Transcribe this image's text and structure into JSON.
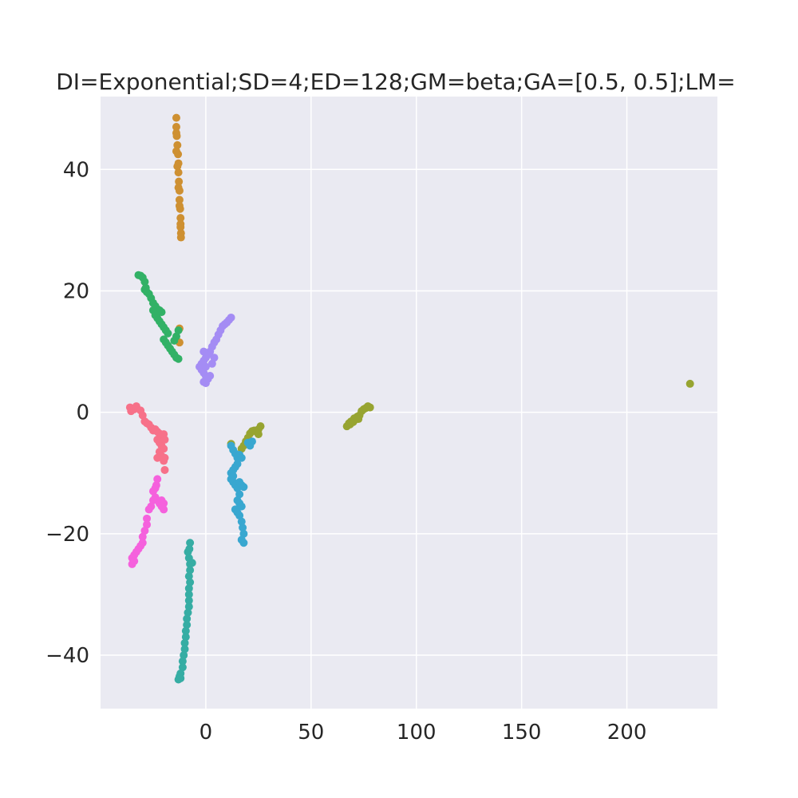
{
  "chart_data": {
    "type": "scatter",
    "title": "DI=Exponential;SD=4;ED=128;GM=beta;GA=[0.5, 0.5];LM=",
    "xlabel": "",
    "ylabel": "",
    "xlim": [
      -50,
      243
    ],
    "ylim": [
      -48.8,
      52
    ],
    "xticks": [
      0,
      50,
      100,
      150,
      200
    ],
    "xtick_labels": [
      "0",
      "50",
      "100",
      "150",
      "200"
    ],
    "yticks": [
      -40,
      -20,
      0,
      20,
      40
    ],
    "ytick_labels": [
      "−40",
      "−20",
      "0",
      "20",
      "40"
    ],
    "grid": true,
    "background": "#eaeaf2",
    "series": [
      {
        "color": "#f77189",
        "points": [
          [
            -36,
            0.8
          ],
          [
            -35.5,
            0.2
          ],
          [
            -34,
            0.5
          ],
          [
            -33,
            1.0
          ],
          [
            -31,
            0.3
          ],
          [
            -30,
            -0.5
          ],
          [
            -29,
            -1.5
          ],
          [
            -28,
            -1.8
          ],
          [
            -27,
            -2.0
          ],
          [
            -26,
            -2.5
          ],
          [
            -25,
            -3.0
          ],
          [
            -24,
            -2.8
          ],
          [
            -23,
            -3.2
          ],
          [
            -22,
            -3.5
          ],
          [
            -21,
            -3.8
          ],
          [
            -20,
            -3.6
          ],
          [
            -23,
            -4.5
          ],
          [
            -22,
            -5.0
          ],
          [
            -21,
            -5.5
          ],
          [
            -20,
            -6.0
          ],
          [
            -19.5,
            -4.5
          ],
          [
            -22,
            -6.5
          ],
          [
            -21,
            -7.2
          ],
          [
            -20,
            -8.0
          ],
          [
            -19.5,
            -9.5
          ],
          [
            -19.5,
            -7.5
          ],
          [
            -23,
            -7.5
          ]
        ]
      },
      {
        "color": "#ce9032",
        "points": [
          [
            -14,
            48.5
          ],
          [
            -14,
            47
          ],
          [
            -13.8,
            45.5
          ],
          [
            -13.5,
            44
          ],
          [
            -13.2,
            42.5
          ],
          [
            -13,
            41
          ],
          [
            -13,
            39.5
          ],
          [
            -12.8,
            38
          ],
          [
            -12.5,
            36.5
          ],
          [
            -12.5,
            35
          ],
          [
            -12.2,
            33.5
          ],
          [
            -12,
            32
          ],
          [
            -12,
            30.5
          ],
          [
            -11.8,
            29.5
          ],
          [
            -11.8,
            28.8
          ],
          [
            -12,
            31
          ],
          [
            -12.5,
            34
          ],
          [
            -13,
            37
          ],
          [
            -13.5,
            40.5
          ],
          [
            -14,
            43
          ],
          [
            -14,
            46
          ],
          [
            -12.5,
            13.8
          ],
          [
            -12.5,
            11.5
          ]
        ]
      },
      {
        "color": "#97a431",
        "points": [
          [
            230,
            4.7
          ],
          [
            67,
            -2.3
          ],
          [
            68,
            -1.8
          ],
          [
            69,
            -1.5
          ],
          [
            70,
            -1.6
          ],
          [
            71,
            -1.2
          ],
          [
            72,
            -0.7
          ],
          [
            73,
            -0.5
          ],
          [
            74,
            0.2
          ],
          [
            75,
            0.5
          ],
          [
            76,
            0.7
          ],
          [
            77,
            1.0
          ],
          [
            78,
            0.8
          ],
          [
            68.5,
            -2.0
          ],
          [
            70.5,
            -1.0
          ],
          [
            72.5,
            -1.1
          ],
          [
            26,
            -2.3
          ],
          [
            25,
            -2.8
          ],
          [
            24,
            -3.2
          ],
          [
            23,
            -3.0
          ],
          [
            22,
            -3.1
          ],
          [
            21,
            -3.5
          ],
          [
            20,
            -4.2
          ],
          [
            19,
            -4.8
          ],
          [
            18,
            -5.5
          ],
          [
            17,
            -6.0
          ],
          [
            12,
            -5.2
          ],
          [
            25,
            -3.6
          ]
        ]
      },
      {
        "color": "#32b166",
        "points": [
          [
            -32,
            22.6
          ],
          [
            -31,
            22.5
          ],
          [
            -30,
            22.2
          ],
          [
            -29,
            21.5
          ],
          [
            -28.5,
            20.5
          ],
          [
            -28,
            19.8
          ],
          [
            -27,
            19.5
          ],
          [
            -26,
            18.8
          ],
          [
            -25,
            18.0
          ],
          [
            -24,
            17.5
          ],
          [
            -23,
            17.0
          ],
          [
            -22,
            16.8
          ],
          [
            -21,
            16.5
          ],
          [
            -24,
            16.0
          ],
          [
            -23,
            15.5
          ],
          [
            -22,
            15.0
          ],
          [
            -21,
            14.5
          ],
          [
            -20,
            14.0
          ],
          [
            -19,
            13.5
          ],
          [
            -18,
            13.0
          ],
          [
            -20,
            12.0
          ],
          [
            -19,
            11.5
          ],
          [
            -18,
            11.0
          ],
          [
            -17,
            10.5
          ],
          [
            -16,
            10.0
          ],
          [
            -15,
            9.5
          ],
          [
            -14,
            9.0
          ],
          [
            -13,
            8.8
          ],
          [
            -13,
            13.5
          ],
          [
            -14,
            12.5
          ],
          [
            -15,
            11.8
          ],
          [
            -29,
            20.2
          ],
          [
            -25,
            16.8
          ]
        ]
      },
      {
        "color": "#36ada4",
        "points": [
          [
            -7.5,
            -21.5
          ],
          [
            -7.8,
            -22.5
          ],
          [
            -8.5,
            -23
          ],
          [
            -8,
            -24
          ],
          [
            -7.5,
            -25
          ],
          [
            -6.5,
            -24.8
          ],
          [
            -7.5,
            -26
          ],
          [
            -8,
            -27
          ],
          [
            -7.5,
            -28
          ],
          [
            -8,
            -29
          ],
          [
            -8,
            -30
          ],
          [
            -8,
            -31
          ],
          [
            -8,
            -32
          ],
          [
            -8.5,
            -33
          ],
          [
            -9,
            -34
          ],
          [
            -9,
            -35
          ],
          [
            -9.5,
            -36
          ],
          [
            -9.5,
            -37
          ],
          [
            -10,
            -38
          ],
          [
            -10,
            -39
          ],
          [
            -10.5,
            -40
          ],
          [
            -11,
            -41
          ],
          [
            -11,
            -42
          ],
          [
            -12,
            -43
          ],
          [
            -12.5,
            -43.5
          ],
          [
            -13,
            -44
          ],
          [
            -12,
            -43.8
          ]
        ]
      },
      {
        "color": "#39a7d0",
        "points": [
          [
            12,
            -5.5
          ],
          [
            13,
            -6.2
          ],
          [
            14,
            -6.8
          ],
          [
            15,
            -7.5
          ],
          [
            16,
            -7.0
          ],
          [
            17,
            -7.5
          ],
          [
            15,
            -8.5
          ],
          [
            14,
            -9.0
          ],
          [
            13,
            -9.5
          ],
          [
            12,
            -10.0
          ],
          [
            12,
            -11.0
          ],
          [
            13,
            -11.5
          ],
          [
            14,
            -12.0
          ],
          [
            15,
            -12.5
          ],
          [
            16,
            -11.5
          ],
          [
            17,
            -12.0
          ],
          [
            18,
            -12.3
          ],
          [
            13,
            -10.5
          ],
          [
            16,
            -13.5
          ],
          [
            15,
            -14.5
          ],
          [
            16,
            -15.0
          ],
          [
            17,
            -15.5
          ],
          [
            14,
            -16.0
          ],
          [
            15,
            -16.5
          ],
          [
            16,
            -17.0
          ],
          [
            17,
            -18.0
          ],
          [
            17.5,
            -19.0
          ],
          [
            18,
            -20.0
          ],
          [
            18,
            -21.5
          ],
          [
            17,
            -21.0
          ],
          [
            20,
            -5.0
          ],
          [
            21,
            -5.5
          ],
          [
            22,
            -4.8
          ]
        ]
      },
      {
        "color": "#a48cf4",
        "points": [
          [
            12,
            15.6
          ],
          [
            11,
            15.2
          ],
          [
            10,
            14.8
          ],
          [
            9,
            14.5
          ],
          [
            8,
            14.2
          ],
          [
            7,
            13.5
          ],
          [
            6,
            12.8
          ],
          [
            5,
            12.0
          ],
          [
            4,
            11.5
          ],
          [
            3,
            10.8
          ],
          [
            2,
            10.0
          ],
          [
            1,
            9.5
          ],
          [
            0,
            9.0
          ],
          [
            -1,
            8.5
          ],
          [
            -2,
            8.0
          ],
          [
            -3,
            7.5
          ],
          [
            -2,
            7.0
          ],
          [
            -1,
            6.5
          ],
          [
            0,
            6.0
          ],
          [
            1,
            5.5
          ],
          [
            -1,
            5.0
          ],
          [
            0,
            4.8
          ],
          [
            2,
            6.0
          ],
          [
            3,
            8.0
          ],
          [
            4,
            9.0
          ],
          [
            -1,
            10.0
          ],
          [
            0,
            7.5
          ]
        ]
      },
      {
        "color": "#f561dd",
        "points": [
          [
            -23,
            -11.0
          ],
          [
            -23.5,
            -12.0
          ],
          [
            -24,
            -12.5
          ],
          [
            -25,
            -13.0
          ],
          [
            -24,
            -14.0
          ],
          [
            -23,
            -14.5
          ],
          [
            -22,
            -15.0
          ],
          [
            -21,
            -14.5
          ],
          [
            -20,
            -15.0
          ],
          [
            -20,
            -16.0
          ],
          [
            -21,
            -15.5
          ],
          [
            -26,
            -15.5
          ],
          [
            -27,
            -16.0
          ],
          [
            -28,
            -17.5
          ],
          [
            -28,
            -18.5
          ],
          [
            -29,
            -19.5
          ],
          [
            -30,
            -20.5
          ],
          [
            -30,
            -21.5
          ],
          [
            -31,
            -22.0
          ],
          [
            -32,
            -22.5
          ],
          [
            -33,
            -23.0
          ],
          [
            -34,
            -23.5
          ],
          [
            -35,
            -24.0
          ],
          [
            -35,
            -25.0
          ],
          [
            -34,
            -24.5
          ],
          [
            -25,
            -14.5
          ]
        ]
      }
    ]
  }
}
